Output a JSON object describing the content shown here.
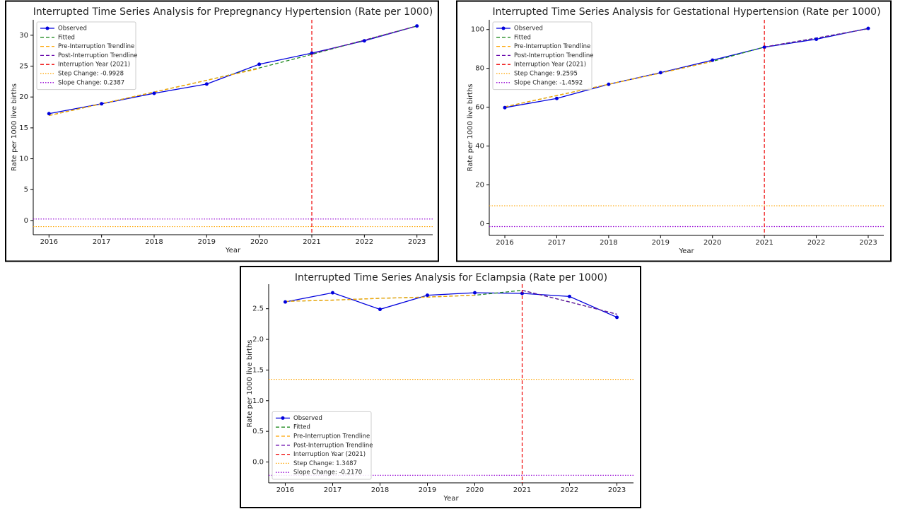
{
  "chart_data": [
    {
      "type": "line",
      "title": "Interrupted Time Series Analysis for Prepregnancy Hypertension (Rate per 1000)",
      "x_label": "Year",
      "y_label": "Rate per 1000 live births",
      "x": [
        2016,
        2017,
        2018,
        2019,
        2020,
        2021,
        2022,
        2023
      ],
      "xlim": [
        2015.7,
        2023.3
      ],
      "xticks": [
        2016,
        2017,
        2018,
        2019,
        2020,
        2021,
        2022,
        2023
      ],
      "ylim": [
        -2.3,
        32.5
      ],
      "yticks": [
        0,
        5,
        10,
        15,
        20,
        25,
        30
      ],
      "legend": "upper left",
      "series": [
        {
          "name": "Observed",
          "color": "#0000dd",
          "dash": "solid",
          "marker": "o",
          "values": [
            17.3,
            18.9,
            20.6,
            22.1,
            25.3,
            27.1,
            29.1,
            31.5
          ]
        },
        {
          "name": "Fitted",
          "color": "#228b22",
          "dash": "dashed",
          "values": [
            17.0,
            18.9,
            20.8,
            22.7,
            24.7,
            26.9,
            29.2,
            31.5
          ]
        },
        {
          "name": "Pre-Interruption Trendline",
          "color": "#ffa500",
          "dash": "dashed",
          "values": [
            17.0,
            18.9,
            20.8,
            22.7,
            24.6,
            null,
            null,
            null
          ]
        },
        {
          "name": "Post-Interruption Trendline",
          "color": "#6a0dad",
          "dash": "dashed",
          "values": [
            null,
            null,
            null,
            null,
            null,
            27.0,
            29.2,
            31.5
          ]
        }
      ],
      "interruption": {
        "name": "Interruption Year (2021)",
        "x": 2021,
        "color": "#ee0000"
      },
      "step_change": {
        "name": "Step Change: -0.9928",
        "value": -0.9928,
        "color": "#ffa500"
      },
      "slope_change": {
        "name": "Slope Change: 0.2387",
        "value": 0.2387,
        "color": "#9400d3"
      }
    },
    {
      "type": "line",
      "title": "Interrupted Time Series Analysis for Gestational Hypertension (Rate per 1000)",
      "x_label": "Year",
      "y_label": "Rate per 1000 live births",
      "x": [
        2016,
        2017,
        2018,
        2019,
        2020,
        2021,
        2022,
        2023
      ],
      "xlim": [
        2015.7,
        2023.3
      ],
      "xticks": [
        2016,
        2017,
        2018,
        2019,
        2020,
        2021,
        2022,
        2023
      ],
      "ylim": [
        -6,
        105
      ],
      "yticks": [
        0,
        20,
        40,
        60,
        80,
        100
      ],
      "legend": "upper left",
      "series": [
        {
          "name": "Observed",
          "color": "#0000dd",
          "dash": "solid",
          "marker": "o",
          "values": [
            59.8,
            64.5,
            71.8,
            77.8,
            84.2,
            90.9,
            95.0,
            100.6
          ]
        },
        {
          "name": "Fitted",
          "color": "#228b22",
          "dash": "dashed",
          "values": [
            60.2,
            66.0,
            71.8,
            77.6,
            83.6,
            91.0,
            95.6,
            100.4
          ]
        },
        {
          "name": "Pre-Interruption Trendline",
          "color": "#ffa500",
          "dash": "dashed",
          "values": [
            60.2,
            66.0,
            71.8,
            77.6,
            83.6,
            null,
            null,
            null
          ]
        },
        {
          "name": "Post-Interruption Trendline",
          "color": "#6a0dad",
          "dash": "dashed",
          "values": [
            null,
            null,
            null,
            null,
            null,
            91.0,
            95.6,
            100.4
          ]
        }
      ],
      "interruption": {
        "name": "Interruption Year (2021)",
        "x": 2021,
        "color": "#ee0000"
      },
      "step_change": {
        "name": "Step Change: 9.2595",
        "value": 9.2595,
        "color": "#ffa500"
      },
      "slope_change": {
        "name": "Slope Change: -1.4592",
        "value": -1.4592,
        "color": "#9400d3"
      }
    },
    {
      "type": "line",
      "title": "Interrupted Time Series Analysis for Eclampsia (Rate per 1000)",
      "x_label": "Year",
      "y_label": "Rate per 1000 live births",
      "x": [
        2016,
        2017,
        2018,
        2019,
        2020,
        2021,
        2022,
        2023
      ],
      "xlim": [
        2015.65,
        2023.35
      ],
      "xticks": [
        2016,
        2017,
        2018,
        2019,
        2020,
        2021,
        2022,
        2023
      ],
      "ylim": [
        -0.34,
        2.9
      ],
      "yticks": [
        {
          "value": 0,
          "label": "0.0"
        },
        0.5,
        {
          "value": 1,
          "label": "1.0"
        },
        1.5,
        {
          "value": 2,
          "label": "2.0"
        },
        2.5
      ],
      "legend": "lower left",
      "series": [
        {
          "name": "Observed",
          "color": "#0000dd",
          "dash": "solid",
          "marker": "o",
          "values": [
            2.61,
            2.76,
            2.49,
            2.72,
            2.76,
            2.75,
            2.7,
            2.36
          ]
        },
        {
          "name": "Fitted",
          "color": "#228b22",
          "dash": "dashed",
          "values": [
            2.62,
            2.64,
            2.67,
            2.69,
            2.72,
            2.8,
            2.61,
            2.41
          ]
        },
        {
          "name": "Pre-Interruption Trendline",
          "color": "#ffa500",
          "dash": "dashed",
          "values": [
            2.62,
            2.64,
            2.67,
            2.69,
            2.72,
            null,
            null,
            null
          ]
        },
        {
          "name": "Post-Interruption Trendline",
          "color": "#6a0dad",
          "dash": "dashed",
          "values": [
            null,
            null,
            null,
            null,
            null,
            2.8,
            2.61,
            2.41
          ]
        }
      ],
      "interruption": {
        "name": "Interruption Year (2021)",
        "x": 2021,
        "color": "#ee0000"
      },
      "step_change": {
        "name": "Step Change: 1.3487",
        "value": 1.3487,
        "color": "#ffa500"
      },
      "slope_change": {
        "name": "Slope Change: -0.2170",
        "value": -0.217,
        "color": "#9400d3"
      }
    }
  ]
}
